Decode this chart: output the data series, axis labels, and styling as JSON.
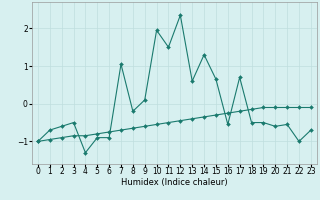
{
  "xlabel": "Humidex (Indice chaleur)",
  "x_values": [
    0,
    1,
    2,
    3,
    4,
    5,
    6,
    7,
    8,
    9,
    10,
    11,
    12,
    13,
    14,
    15,
    16,
    17,
    18,
    19,
    20,
    21,
    22,
    23
  ],
  "line1_y": [
    -1.0,
    -0.7,
    -0.6,
    -0.5,
    -1.3,
    -0.9,
    -0.9,
    1.05,
    -0.2,
    0.1,
    1.95,
    1.5,
    2.35,
    0.6,
    1.3,
    0.65,
    -0.55,
    0.7,
    -0.5,
    -0.5,
    -0.6,
    -0.55,
    -1.0,
    -0.7
  ],
  "line2_y": [
    -1.0,
    -0.95,
    -0.9,
    -0.85,
    -0.85,
    -0.8,
    -0.75,
    -0.7,
    -0.65,
    -0.6,
    -0.55,
    -0.5,
    -0.45,
    -0.4,
    -0.35,
    -0.3,
    -0.25,
    -0.2,
    -0.15,
    -0.1,
    -0.1,
    -0.1,
    -0.1,
    -0.1
  ],
  "line_color": "#1a7a6e",
  "bg_color": "#d7f0f0",
  "grid_color": "#c0dede",
  "ylim": [
    -1.6,
    2.7
  ],
  "yticks": [
    -1,
    0,
    1,
    2
  ],
  "label_fontsize": 6,
  "tick_fontsize": 5.5
}
